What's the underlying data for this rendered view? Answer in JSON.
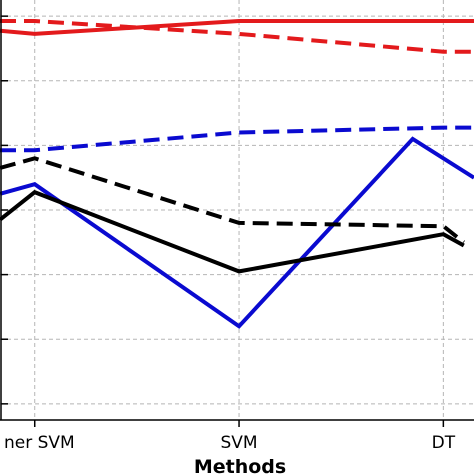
{
  "chart_data": {
    "type": "line",
    "title": "",
    "xlabel": "Methods",
    "ylabel": "",
    "categories": [
      "Linear SVM",
      "SVM",
      "DT"
    ],
    "visible_tick_labels": [
      "ner SVM",
      "SVM",
      "DT"
    ],
    "grid": true,
    "legend": "right, partially cropped",
    "series": [
      {
        "color": "#e31a1c",
        "dash": "solid",
        "x": [
          -0.17,
          0.0,
          1.0,
          2.0,
          2.15
        ],
        "values": [
          0.955,
          0.945,
          0.985,
          0.985,
          0.985
        ]
      },
      {
        "color": "#e31a1c",
        "dash": "dashed",
        "x": [
          -0.17,
          0.0,
          1.0,
          2.0,
          2.15
        ],
        "values": [
          0.985,
          0.985,
          0.945,
          0.89,
          0.89
        ]
      },
      {
        "color": "#0a0ad0",
        "dash": "dashed",
        "x": [
          -0.17,
          0.0,
          1.0,
          2.0,
          2.15
        ],
        "values": [
          0.585,
          0.585,
          0.64,
          0.655,
          0.655
        ]
      },
      {
        "color": "#0a0ad0",
        "dash": "solid",
        "x": [
          -0.17,
          0.0,
          1.0,
          1.85,
          2.15
        ],
        "values": [
          0.45,
          0.48,
          0.04,
          0.62,
          0.5
        ]
      },
      {
        "color": "#000000",
        "dash": "dashed",
        "x": [
          -0.17,
          0.0,
          1.0,
          2.0,
          2.1
        ],
        "values": [
          0.53,
          0.56,
          0.36,
          0.35,
          0.3
        ]
      },
      {
        "color": "#000000",
        "dash": "solid",
        "x": [
          -0.17,
          0.0,
          1.0,
          2.0,
          2.1
        ],
        "values": [
          0.37,
          0.455,
          0.21,
          0.325,
          0.29
        ]
      }
    ],
    "xlim": [
      -0.17,
      2.15
    ],
    "ylim": [
      -0.25,
      1.05
    ],
    "yticks": [
      -0.2,
      0.0,
      0.2,
      0.4,
      0.6,
      0.8,
      1.0
    ]
  }
}
